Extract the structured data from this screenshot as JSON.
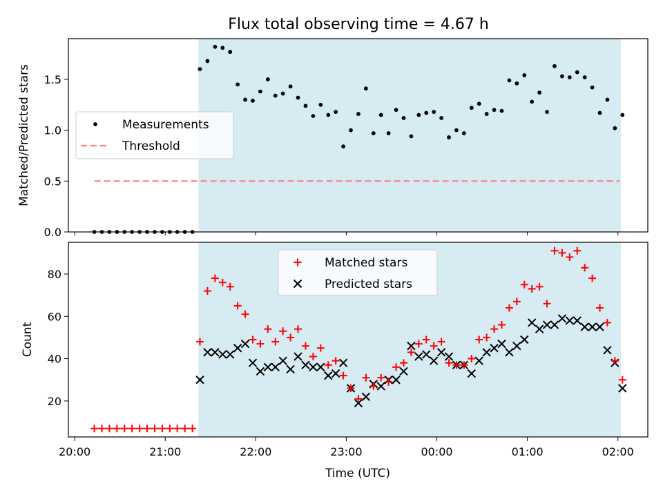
{
  "title": "Flux total observing time = 4.67 h",
  "colors": {
    "shade": "#add8e6",
    "threshold": "#ff7f7f",
    "matched": "#ff0000",
    "predicted": "#000000",
    "measure": "#000000"
  },
  "chart_data": [
    {
      "type": "scatter",
      "ylabel": "Matched/Predicted stars",
      "ylim": [
        0,
        1.9
      ],
      "yticks": [
        "0.0",
        "0.5",
        "1.0",
        "1.5"
      ],
      "x_axis": "time UTC (hours after 20:00)",
      "xlim": [
        -0.07,
        6.33
      ],
      "observing_window": [
        "21:22",
        "02:02"
      ],
      "legend_placement": "center-left",
      "legend": [
        "Measurements",
        "Threshold"
      ],
      "threshold": {
        "name": "Threshold",
        "value": 0.5,
        "x": [
          "20:13",
          "02:01"
        ]
      },
      "series": [
        {
          "name": "Measurements",
          "x": [
            "20:13",
            "20:18",
            "20:23",
            "20:28",
            "20:33",
            "20:38",
            "20:43",
            "20:48",
            "20:53",
            "20:58",
            "21:03",
            "21:08",
            "21:13",
            "21:18",
            "21:23",
            "21:28",
            "21:33",
            "21:38",
            "21:43",
            "21:48",
            "21:53",
            "21:58",
            "22:03",
            "22:08",
            "22:13",
            "22:18",
            "22:23",
            "22:28",
            "22:33",
            "22:38",
            "22:43",
            "22:48",
            "22:53",
            "22:58",
            "23:03",
            "23:08",
            "23:13",
            "23:18",
            "23:23",
            "23:28",
            "23:33",
            "23:38",
            "23:43",
            "23:48",
            "23:53",
            "23:58",
            "00:03",
            "00:08",
            "00:13",
            "00:18",
            "00:23",
            "00:28",
            "00:33",
            "00:38",
            "00:43",
            "00:48",
            "00:53",
            "00:58",
            "01:03",
            "01:08",
            "01:13",
            "01:18",
            "01:23",
            "01:28",
            "01:33",
            "01:38",
            "01:43",
            "01:48",
            "01:53",
            "01:58",
            "02:03"
          ],
          "y": [
            0,
            0,
            0,
            0,
            0,
            0,
            0,
            0,
            0,
            0,
            0,
            0,
            0,
            0,
            1.6,
            1.68,
            1.82,
            1.81,
            1.77,
            1.45,
            1.3,
            1.29,
            1.38,
            1.5,
            1.34,
            1.36,
            1.43,
            1.32,
            1.24,
            1.14,
            1.25,
            1.15,
            1.18,
            0.84,
            1.0,
            1.16,
            1.41,
            0.97,
            1.15,
            0.97,
            1.2,
            1.12,
            0.94,
            1.15,
            1.17,
            1.18,
            1.12,
            0.93,
            1.0,
            0.97,
            1.22,
            1.26,
            1.16,
            1.2,
            1.19,
            1.49,
            1.46,
            1.54,
            1.28,
            1.37,
            1.18,
            1.63,
            1.53,
            1.52,
            1.57,
            1.52,
            1.42,
            1.17,
            1.3,
            1.02,
            1.15
          ]
        }
      ]
    },
    {
      "type": "scatter",
      "xlabel": "Time (UTC)",
      "ylabel": "Count",
      "ylim": [
        3,
        95
      ],
      "yticks": [
        "20",
        "40",
        "60",
        "80"
      ],
      "xticks": [
        "20:00",
        "21:00",
        "22:00",
        "23:00",
        "00:00",
        "01:00",
        "02:00"
      ],
      "x_axis": "time UTC (hours after 20:00)",
      "xlim": [
        -0.07,
        6.33
      ],
      "observing_window": [
        "21:22",
        "02:02"
      ],
      "legend_placement": "upper-center",
      "legend": [
        "Matched stars",
        "Predicted stars"
      ],
      "x": [
        "20:13",
        "20:18",
        "20:23",
        "20:28",
        "20:33",
        "20:38",
        "20:43",
        "20:48",
        "20:53",
        "20:58",
        "21:03",
        "21:08",
        "21:13",
        "21:18",
        "21:23",
        "21:28",
        "21:33",
        "21:38",
        "21:43",
        "21:48",
        "21:53",
        "21:58",
        "22:03",
        "22:08",
        "22:13",
        "22:18",
        "22:23",
        "22:28",
        "22:33",
        "22:38",
        "22:43",
        "22:48",
        "22:53",
        "22:58",
        "23:03",
        "23:08",
        "23:13",
        "23:18",
        "23:23",
        "23:28",
        "23:33",
        "23:38",
        "23:43",
        "23:48",
        "23:53",
        "23:58",
        "00:03",
        "00:08",
        "00:13",
        "00:18",
        "00:23",
        "00:28",
        "00:33",
        "00:38",
        "00:43",
        "00:48",
        "00:53",
        "00:58",
        "01:03",
        "01:08",
        "01:13",
        "01:18",
        "01:23",
        "01:28",
        "01:33",
        "01:38",
        "01:43",
        "01:48",
        "01:53",
        "01:58",
        "02:03"
      ],
      "series": [
        {
          "name": "Matched stars",
          "values": [
            7,
            7,
            7,
            7,
            7,
            7,
            7,
            7,
            7,
            7,
            7,
            7,
            7,
            7,
            48,
            72,
            78,
            76,
            74,
            65,
            61,
            49,
            47,
            54,
            48,
            53,
            50,
            54,
            46,
            41,
            45,
            37,
            39,
            32,
            26,
            21,
            31,
            27,
            31,
            29,
            36,
            38,
            43,
            47,
            49,
            46,
            48,
            38,
            37,
            37,
            40,
            49,
            50,
            54,
            56,
            64,
            67,
            75,
            73,
            74,
            66,
            91,
            90,
            88,
            91,
            83,
            78,
            64,
            57,
            39,
            30
          ]
        },
        {
          "name": "Predicted stars",
          "values": [
            null,
            null,
            null,
            null,
            null,
            null,
            null,
            null,
            null,
            null,
            null,
            null,
            null,
            null,
            30,
            43,
            43,
            42,
            42,
            45,
            47,
            38,
            34,
            36,
            36,
            39,
            35,
            41,
            37,
            36,
            36,
            32,
            33,
            38,
            26,
            19,
            22,
            28,
            27,
            30,
            30,
            34,
            46,
            41,
            42,
            39,
            43,
            41,
            37,
            37,
            33,
            39,
            43,
            45,
            47,
            43,
            46,
            49,
            57,
            54,
            56,
            56,
            59,
            58,
            58,
            55,
            55,
            55,
            44,
            38,
            26
          ]
        }
      ]
    }
  ]
}
